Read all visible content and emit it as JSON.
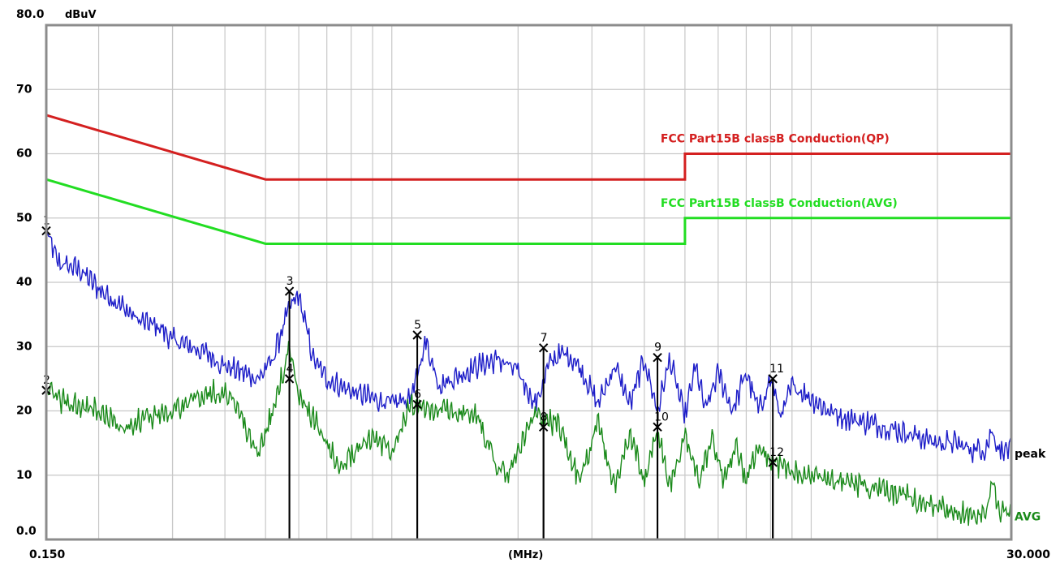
{
  "chart_data": {
    "type": "line",
    "ylabel": "dBuV",
    "xlabel": "(MHz)",
    "x_scale": "log",
    "xlim": [
      0.15,
      30.0
    ],
    "ylim": [
      0,
      80
    ],
    "y_ticks": [
      "0.0",
      "10",
      "20",
      "30",
      "40",
      "50",
      "60",
      "70",
      "80.0"
    ],
    "y_tick_values": [
      0,
      10,
      20,
      30,
      40,
      50,
      60,
      70,
      80
    ],
    "x_tick_labels": [
      "0.150",
      "30.000"
    ],
    "grid": true,
    "limits": [
      {
        "name": "FCC  Part15B classB Conduction(QP)",
        "color": "#d42020",
        "points": [
          [
            0.15,
            66
          ],
          [
            0.5,
            56
          ],
          [
            5.0,
            56
          ],
          [
            5.0,
            60
          ],
          [
            30.0,
            60
          ]
        ]
      },
      {
        "name": "FCC  Part15B classB Conduction(AVG)",
        "color": "#22dd22",
        "points": [
          [
            0.15,
            56
          ],
          [
            0.5,
            46
          ],
          [
            5.0,
            46
          ],
          [
            5.0,
            50
          ],
          [
            30.0,
            50
          ]
        ]
      }
    ],
    "series": [
      {
        "name": "peak",
        "color": "#1c1cc8",
        "x": [
          0.15,
          0.16,
          0.18,
          0.2,
          0.22,
          0.25,
          0.28,
          0.3,
          0.33,
          0.36,
          0.4,
          0.44,
          0.48,
          0.52,
          0.55,
          0.57,
          0.6,
          0.65,
          0.7,
          0.8,
          0.9,
          1.0,
          1.1,
          1.15,
          1.2,
          1.3,
          1.4,
          1.6,
          1.8,
          2.0,
          2.2,
          2.4,
          2.6,
          2.8,
          3.1,
          3.4,
          3.7,
          4.0,
          4.3,
          4.6,
          5.0,
          5.3,
          5.6,
          6.0,
          6.5,
          7.0,
          7.5,
          8.0,
          8.5,
          9.0,
          10.0,
          11.0,
          12.0,
          14.0,
          16.0,
          18.0,
          20.0,
          22.0,
          24.0,
          26.0,
          27.0,
          28.0,
          30.0
        ],
        "y": [
          48,
          43,
          42,
          39,
          37,
          34,
          33,
          31,
          30,
          29,
          27,
          26,
          25,
          28,
          33,
          36,
          38,
          28,
          25,
          23,
          22,
          21,
          22,
          25,
          31,
          24,
          25,
          27,
          28,
          26,
          21,
          28,
          29,
          27,
          21,
          27,
          21,
          28,
          20,
          28,
          19,
          27,
          20,
          26,
          20,
          26,
          20,
          25,
          19,
          24,
          22,
          20,
          19,
          18,
          17,
          16,
          15,
          15,
          14,
          14,
          17,
          14,
          14
        ]
      },
      {
        "name": "AVG",
        "color": "#1a8a1a",
        "x": [
          0.15,
          0.17,
          0.2,
          0.23,
          0.26,
          0.3,
          0.34,
          0.38,
          0.42,
          0.45,
          0.48,
          0.52,
          0.55,
          0.57,
          0.6,
          0.65,
          0.7,
          0.75,
          0.8,
          0.9,
          1.0,
          1.1,
          1.2,
          1.4,
          1.6,
          1.8,
          1.9,
          2.0,
          2.2,
          2.5,
          2.8,
          3.1,
          3.4,
          3.7,
          4.0,
          4.3,
          4.6,
          5.0,
          5.4,
          5.8,
          6.2,
          6.6,
          7.0,
          7.5,
          8.0,
          9.0,
          10.0,
          12.0,
          14.0,
          16.0,
          18.0,
          20.0,
          22.0,
          24.0,
          26.0,
          27.0,
          28.0,
          30.0
        ],
        "y": [
          23,
          21,
          20,
          17,
          19,
          20,
          22,
          23,
          22,
          17,
          13,
          20,
          26,
          30,
          22,
          19,
          15,
          11,
          13,
          16,
          14,
          21,
          20,
          20,
          19,
          11,
          10,
          14,
          19,
          18,
          9,
          18,
          8,
          17,
          9,
          17,
          8,
          16,
          9,
          16,
          9,
          15,
          9,
          14,
          12,
          11,
          10,
          9,
          8,
          7,
          6,
          5,
          4,
          4,
          4,
          9,
          4,
          4
        ]
      }
    ],
    "markers": [
      {
        "label": "1",
        "x": 0.15,
        "y": 48.0
      },
      {
        "label": "2",
        "x": 0.15,
        "y": 23.2
      },
      {
        "label": "3",
        "x": 0.57,
        "y": 38.6
      },
      {
        "label": "4",
        "x": 0.57,
        "y": 25.0
      },
      {
        "label": "5",
        "x": 1.15,
        "y": 31.8
      },
      {
        "label": "6",
        "x": 1.15,
        "y": 21.0
      },
      {
        "label": "7",
        "x": 2.3,
        "y": 29.8
      },
      {
        "label": "8",
        "x": 2.3,
        "y": 17.5
      },
      {
        "label": "9",
        "x": 4.3,
        "y": 28.3
      },
      {
        "label": "10",
        "x": 4.3,
        "y": 17.5
      },
      {
        "label": "11",
        "x": 8.1,
        "y": 25.0
      },
      {
        "label": "12",
        "x": 8.1,
        "y": 12.0
      }
    ]
  },
  "colors": {
    "frame": "#8c8c8c",
    "grid": "#c8c8c8",
    "marker_line": "#000000"
  }
}
